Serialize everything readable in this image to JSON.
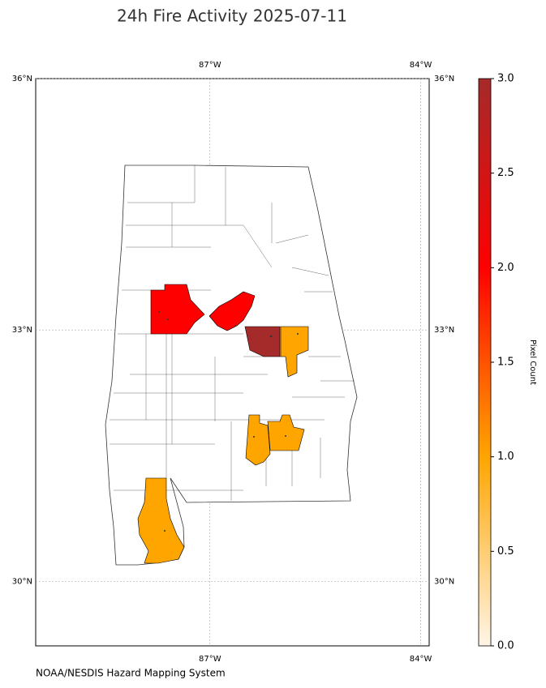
{
  "title": "24h Fire Activity 2025-07-11",
  "credit": "NOAA/NESDIS Hazard Mapping System",
  "map": {
    "xlim": [
      -89.48,
      -83.88
    ],
    "ylim": [
      29.23,
      36
    ],
    "lon_ticks": [
      {
        "value": -87,
        "label": "87°W"
      },
      {
        "value": -84,
        "label": "84°W"
      }
    ],
    "lat_ticks": [
      {
        "value": 36,
        "label": "36°N"
      },
      {
        "value": 33,
        "label": "33°N"
      },
      {
        "value": 30,
        "label": "30°N"
      }
    ],
    "grid": true,
    "fire_counties": {
      "values": [
        2,
        2,
        3,
        1,
        1,
        1,
        1
      ]
    }
  },
  "colorbar": {
    "label": "Pixel Count",
    "lim": [
      0,
      3
    ],
    "ticks": [
      {
        "value": 0,
        "label": "0.0"
      },
      0.5,
      {
        "value": 1,
        "label": "1.0"
      },
      1.5,
      {
        "value": 2,
        "label": "2.0"
      },
      2.5,
      {
        "value": 3,
        "label": "3.0"
      }
    ],
    "colors": [
      "#fff5e6",
      "#ffa500",
      "#ff0000",
      "#a52a2a"
    ]
  }
}
